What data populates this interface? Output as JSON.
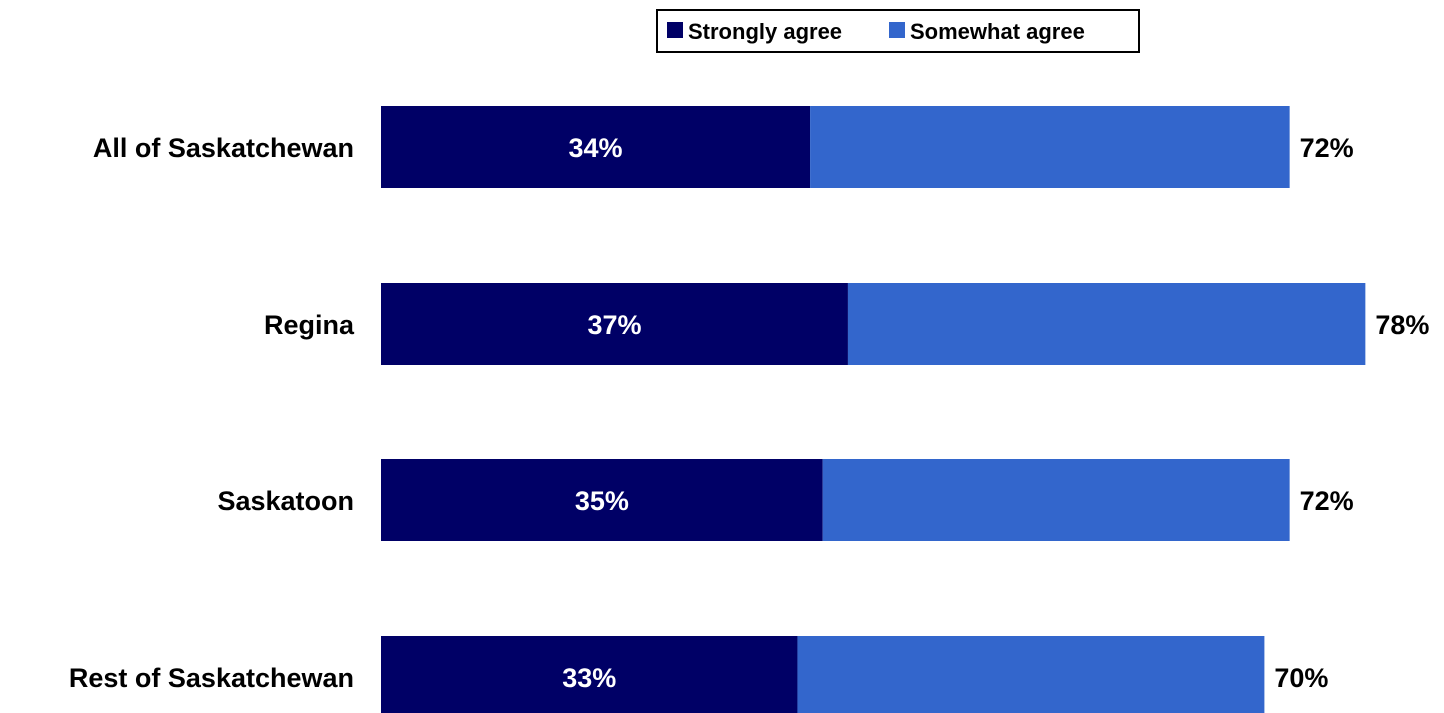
{
  "chart_data": {
    "type": "bar",
    "orientation": "horizontal",
    "stacked": true,
    "categories": [
      "All of Saskatchewan",
      "Regina",
      "Saskatoon",
      "Rest of Saskatchewan"
    ],
    "series": [
      {
        "name": "Strongly agree",
        "values": [
          34,
          37,
          35,
          33
        ],
        "color": "#000066",
        "labels": [
          "34%",
          "37%",
          "35%",
          "33%"
        ]
      },
      {
        "name": "Somewhat agree",
        "values": [
          38,
          41,
          37,
          37
        ],
        "color": "#3366cc"
      }
    ],
    "totals": [
      72,
      78,
      72,
      70
    ],
    "total_labels": [
      "72%",
      "78%",
      "72%",
      "70%"
    ],
    "xlim": [
      0,
      78
    ],
    "grid": false,
    "legend_position": "top"
  }
}
